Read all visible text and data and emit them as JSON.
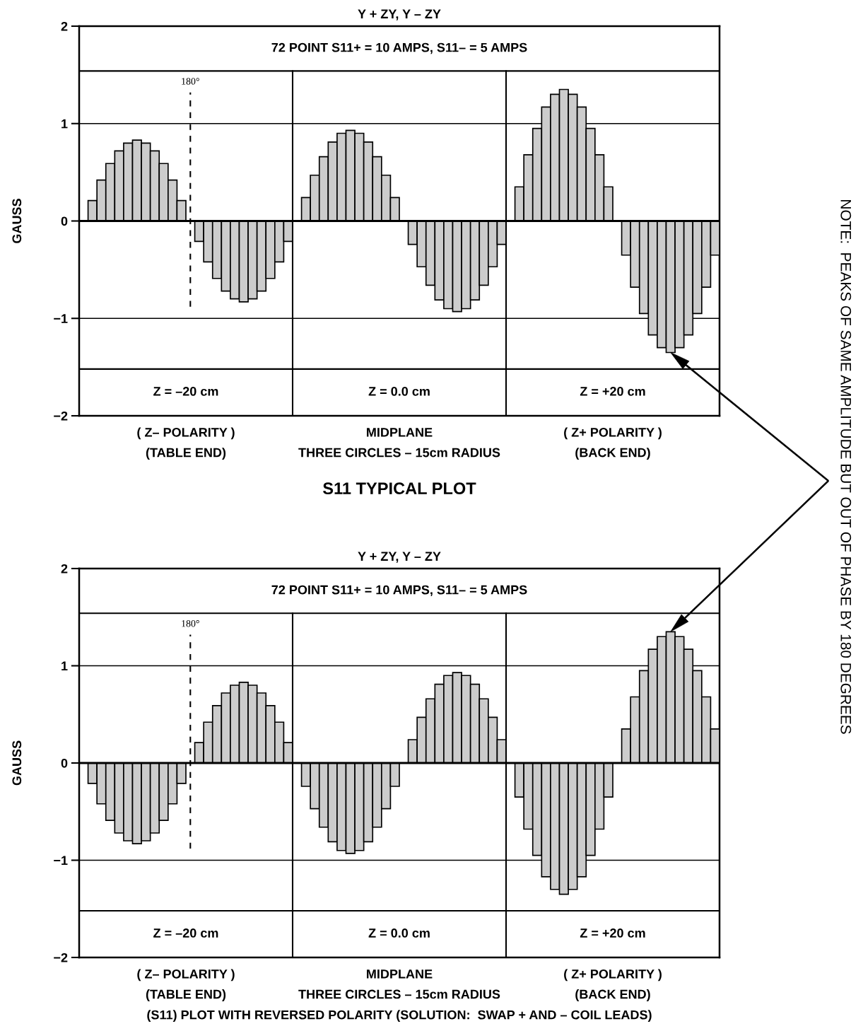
{
  "chart_data": [
    {
      "type": "bar",
      "title": "Y + ZY, Y – ZY",
      "subtitle": "72 POINT S11+ = 10 AMPS, S11– = 5 AMPS",
      "ylabel": "GAUSS",
      "categories": [
        null,
        null,
        null,
        null,
        null,
        null,
        null,
        null,
        null,
        null,
        null,
        null,
        null,
        null,
        null,
        null,
        null,
        null,
        null,
        null,
        null,
        null,
        null,
        null,
        null,
        null,
        null,
        null,
        null,
        null,
        null,
        null,
        null,
        null,
        null,
        null,
        null,
        null,
        null,
        null,
        null,
        null,
        null,
        null,
        null,
        null,
        null,
        null,
        null,
        null,
        null,
        null,
        null,
        null,
        null,
        null,
        null,
        null,
        null,
        null,
        null,
        null,
        null,
        null,
        null,
        null,
        null,
        null,
        null,
        null,
        null,
        null
      ],
      "values": [
        0,
        0.21,
        0.42,
        0.59,
        0.72,
        0.8,
        0.83,
        0.8,
        0.72,
        0.59,
        0.42,
        0.21,
        0,
        -0.21,
        -0.42,
        -0.59,
        -0.72,
        -0.8,
        -0.83,
        -0.8,
        -0.72,
        -0.59,
        -0.42,
        -0.21,
        0,
        0.24,
        0.47,
        0.66,
        0.81,
        0.9,
        0.93,
        0.9,
        0.81,
        0.66,
        0.47,
        0.24,
        0,
        -0.24,
        -0.47,
        -0.66,
        -0.81,
        -0.9,
        -0.93,
        -0.9,
        -0.81,
        -0.66,
        -0.47,
        -0.24,
        0,
        0.35,
        0.68,
        0.95,
        1.17,
        1.3,
        1.35,
        1.3,
        1.17,
        0.95,
        0.68,
        0.35,
        0,
        -0.35,
        -0.68,
        -0.95,
        -1.17,
        -1.3,
        -1.35,
        -1.3,
        -1.17,
        -0.95,
        -0.68,
        -0.35
      ],
      "color": "#cccccc",
      "ylim": [
        -2,
        2
      ],
      "yticks": [
        -2,
        -1,
        0,
        1,
        2
      ],
      "grid": "y",
      "tick_labels": "y",
      "annotations": [
        "Z = –20 cm",
        "Z = 0.0 cm",
        "Z = +20 cm",
        "( Z– POLARITY )\n(TABLE END)",
        "MIDPLANE\nTHREE CIRCLES – 15cm RADIUS",
        "( Z+ POLARITY )\n(BACK END)",
        "S11 TYPICAL PLOT",
        "180°",
        "NOTE:  PEAKS OF SAME AMPLITUDE BUT OUT OF PHASE BY 180 DEGREES"
      ]
    },
    {
      "type": "bar",
      "title": "Y + ZY, Y – ZY",
      "subtitle": "72 POINT S11+ = 10 AMPS, S11– = 5 AMPS",
      "ylabel": "GAUSS",
      "categories": [
        null,
        null,
        null,
        null,
        null,
        null,
        null,
        null,
        null,
        null,
        null,
        null,
        null,
        null,
        null,
        null,
        null,
        null,
        null,
        null,
        null,
        null,
        null,
        null,
        null,
        null,
        null,
        null,
        null,
        null,
        null,
        null,
        null,
        null,
        null,
        null,
        null,
        null,
        null,
        null,
        null,
        null,
        null,
        null,
        null,
        null,
        null,
        null,
        null,
        null,
        null,
        null,
        null,
        null,
        null,
        null,
        null,
        null,
        null,
        null,
        null,
        null,
        null,
        null,
        null,
        null,
        null,
        null,
        null,
        null,
        null,
        null
      ],
      "values": [
        0,
        -0.21,
        -0.42,
        -0.59,
        -0.72,
        -0.8,
        -0.83,
        -0.8,
        -0.72,
        -0.59,
        -0.42,
        -0.21,
        0,
        0.21,
        0.42,
        0.59,
        0.72,
        0.8,
        0.83,
        0.8,
        0.72,
        0.59,
        0.42,
        0.21,
        0,
        -0.24,
        -0.47,
        -0.66,
        -0.81,
        -0.9,
        -0.93,
        -0.9,
        -0.81,
        -0.66,
        -0.47,
        -0.24,
        0,
        0.24,
        0.47,
        0.66,
        0.81,
        0.9,
        0.93,
        0.9,
        0.81,
        0.66,
        0.47,
        0.24,
        0,
        -0.35,
        -0.68,
        -0.95,
        -1.17,
        -1.3,
        -1.35,
        -1.3,
        -1.17,
        -0.95,
        -0.68,
        -0.35,
        0,
        0.35,
        0.68,
        0.95,
        1.17,
        1.3,
        1.35,
        1.3,
        1.17,
        0.95,
        0.68,
        0.35
      ],
      "color": "#cccccc",
      "ylim": [
        -2,
        2
      ],
      "yticks": [
        -2,
        -1,
        0,
        1,
        2
      ],
      "grid": "y",
      "tick_labels": "y",
      "annotations": [
        "Z = –20 cm",
        "Z = 0.0 cm",
        "Z = +20 cm",
        "( Z– POLARITY )\n(TABLE END)",
        "MIDPLANE\nTHREE CIRCLES – 15cm RADIUS",
        "( Z+ POLARITY )\n(BACK END)",
        "(S11) PLOT WITH REVERSED POLARITY (SOLUTION:  SWAP + AND – COIL LEADS)",
        "180°"
      ]
    }
  ]
}
